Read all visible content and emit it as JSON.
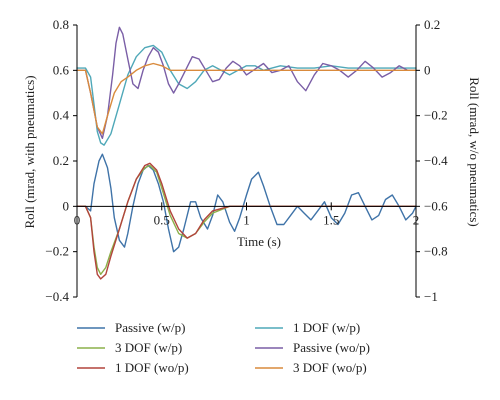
{
  "chart_data": {
    "type": "line",
    "title": "",
    "xlabel": "Time (s)",
    "ylabel_left": "Roll (mrad, with pneumatics)",
    "ylabel_right": "Roll (mrad, w/o pneumatics)",
    "xlim": [
      0,
      2
    ],
    "ylim_left": [
      -0.4,
      0.8
    ],
    "ylim_right": [
      -1,
      0.2
    ],
    "x_ticks": [
      "0",
      "0.5",
      "1",
      "1.5",
      "2"
    ],
    "y_ticks_left": [
      "−0.4",
      "−0.2",
      "0",
      "0.2",
      "0.4",
      "0.6",
      "0.8"
    ],
    "y_ticks_right": [
      "−1",
      "−0.8",
      "−0.6",
      "−0.4",
      "−0.2",
      "0",
      "0.2"
    ],
    "grid": false,
    "legend_position": "bottom",
    "series": [
      {
        "name": "Passive (w/p)",
        "axis": "left",
        "color": "#3f73a8",
        "points": [
          [
            0,
            0
          ],
          [
            0.05,
            0
          ],
          [
            0.08,
            -0.02
          ],
          [
            0.1,
            0.1
          ],
          [
            0.13,
            0.2
          ],
          [
            0.15,
            0.23
          ],
          [
            0.18,
            0.17
          ],
          [
            0.2,
            0.08
          ],
          [
            0.22,
            -0.05
          ],
          [
            0.25,
            -0.15
          ],
          [
            0.28,
            -0.18
          ],
          [
            0.3,
            -0.12
          ],
          [
            0.33,
            0
          ],
          [
            0.36,
            0.1
          ],
          [
            0.39,
            0.16
          ],
          [
            0.42,
            0.18
          ],
          [
            0.45,
            0.16
          ],
          [
            0.48,
            0.1
          ],
          [
            0.51,
            0.02
          ],
          [
            0.54,
            -0.1
          ],
          [
            0.57,
            -0.2
          ],
          [
            0.6,
            -0.18
          ],
          [
            0.63,
            -0.1
          ],
          [
            0.67,
            0.02
          ],
          [
            0.7,
            0.02
          ],
          [
            0.73,
            -0.05
          ],
          [
            0.77,
            -0.1
          ],
          [
            0.8,
            -0.04
          ],
          [
            0.83,
            0.05
          ],
          [
            0.86,
            0.02
          ],
          [
            0.9,
            -0.07
          ],
          [
            0.93,
            -0.11
          ],
          [
            0.96,
            -0.05
          ],
          [
            1.0,
            0.05
          ],
          [
            1.03,
            0.12
          ],
          [
            1.07,
            0.15
          ],
          [
            1.1,
            0.09
          ],
          [
            1.14,
            0
          ],
          [
            1.18,
            -0.08
          ],
          [
            1.22,
            -0.08
          ],
          [
            1.26,
            -0.04
          ],
          [
            1.3,
            0.0
          ],
          [
            1.34,
            -0.03
          ],
          [
            1.38,
            -0.06
          ],
          [
            1.42,
            -0.02
          ],
          [
            1.46,
            0.02
          ],
          [
            1.5,
            -0.05
          ],
          [
            1.54,
            -0.08
          ],
          [
            1.58,
            -0.03
          ],
          [
            1.62,
            0.05
          ],
          [
            1.66,
            0.06
          ],
          [
            1.7,
            0.0
          ],
          [
            1.74,
            -0.06
          ],
          [
            1.78,
            -0.04
          ],
          [
            1.82,
            0.03
          ],
          [
            1.86,
            0.05
          ],
          [
            1.9,
            0.0
          ],
          [
            1.94,
            -0.06
          ],
          [
            1.98,
            -0.03
          ],
          [
            2.0,
            0.0
          ]
        ]
      },
      {
        "name": "1 DOF (w/p)",
        "axis": "left",
        "color": "#4fa8b8",
        "points": [
          [
            0,
            0.61
          ],
          [
            0.05,
            0.61
          ],
          [
            0.08,
            0.57
          ],
          [
            0.1,
            0.45
          ],
          [
            0.12,
            0.33
          ],
          [
            0.14,
            0.28
          ],
          [
            0.16,
            0.27
          ],
          [
            0.2,
            0.32
          ],
          [
            0.25,
            0.45
          ],
          [
            0.3,
            0.58
          ],
          [
            0.35,
            0.66
          ],
          [
            0.4,
            0.7
          ],
          [
            0.45,
            0.71
          ],
          [
            0.5,
            0.68
          ],
          [
            0.55,
            0.6
          ],
          [
            0.6,
            0.54
          ],
          [
            0.65,
            0.52
          ],
          [
            0.7,
            0.55
          ],
          [
            0.75,
            0.6
          ],
          [
            0.8,
            0.62
          ],
          [
            0.85,
            0.6
          ],
          [
            0.9,
            0.58
          ],
          [
            0.95,
            0.6
          ],
          [
            1.0,
            0.62
          ],
          [
            1.05,
            0.62
          ],
          [
            1.1,
            0.6
          ],
          [
            1.15,
            0.61
          ],
          [
            1.2,
            0.62
          ],
          [
            1.3,
            0.61
          ],
          [
            1.4,
            0.61
          ],
          [
            1.5,
            0.62
          ],
          [
            1.6,
            0.61
          ],
          [
            1.7,
            0.61
          ],
          [
            1.8,
            0.61
          ],
          [
            1.9,
            0.61
          ],
          [
            2.0,
            0.61
          ]
        ]
      },
      {
        "name": "3 DOF (w/p)",
        "axis": "left",
        "color": "#8cb04a",
        "points": [
          [
            0,
            0
          ],
          [
            0.05,
            0
          ],
          [
            0.08,
            -0.05
          ],
          [
            0.1,
            -0.18
          ],
          [
            0.12,
            -0.27
          ],
          [
            0.14,
            -0.3
          ],
          [
            0.17,
            -0.27
          ],
          [
            0.2,
            -0.2
          ],
          [
            0.25,
            -0.1
          ],
          [
            0.3,
            0.02
          ],
          [
            0.35,
            0.12
          ],
          [
            0.4,
            0.17
          ],
          [
            0.43,
            0.18
          ],
          [
            0.47,
            0.15
          ],
          [
            0.5,
            0.08
          ],
          [
            0.55,
            -0.04
          ],
          [
            0.6,
            -0.12
          ],
          [
            0.65,
            -0.14
          ],
          [
            0.7,
            -0.12
          ],
          [
            0.75,
            -0.07
          ],
          [
            0.8,
            -0.03
          ],
          [
            0.9,
            0.0
          ],
          [
            1.0,
            0.0
          ],
          [
            1.2,
            0.0
          ],
          [
            1.5,
            0.0
          ],
          [
            2.0,
            0.0
          ]
        ]
      },
      {
        "name": "Passive (wo/p)",
        "axis": "right",
        "color": "#7a5ea6",
        "points": [
          [
            0,
            0
          ],
          [
            0.05,
            0
          ],
          [
            0.08,
            -0.1
          ],
          [
            0.12,
            -0.25
          ],
          [
            0.15,
            -0.3
          ],
          [
            0.18,
            -0.2
          ],
          [
            0.21,
            -0.02
          ],
          [
            0.23,
            0.12
          ],
          [
            0.25,
            0.19
          ],
          [
            0.27,
            0.16
          ],
          [
            0.3,
            0.05
          ],
          [
            0.33,
            -0.06
          ],
          [
            0.36,
            -0.08
          ],
          [
            0.39,
            0.0
          ],
          [
            0.42,
            0.06
          ],
          [
            0.45,
            0.1
          ],
          [
            0.48,
            0.08
          ],
          [
            0.51,
            0.02
          ],
          [
            0.54,
            -0.06
          ],
          [
            0.57,
            -0.1
          ],
          [
            0.6,
            -0.06
          ],
          [
            0.64,
            0.0
          ],
          [
            0.68,
            0.06
          ],
          [
            0.72,
            0.05
          ],
          [
            0.76,
            0.0
          ],
          [
            0.8,
            -0.05
          ],
          [
            0.84,
            -0.04
          ],
          [
            0.88,
            0.01
          ],
          [
            0.92,
            0.04
          ],
          [
            0.96,
            0.02
          ],
          [
            1.0,
            -0.02
          ],
          [
            1.04,
            0.0
          ],
          [
            1.1,
            0.03
          ],
          [
            1.15,
            -0.01
          ],
          [
            1.2,
            0.0
          ],
          [
            1.25,
            0.02
          ],
          [
            1.3,
            -0.05
          ],
          [
            1.35,
            -0.09
          ],
          [
            1.4,
            -0.02
          ],
          [
            1.45,
            0.03
          ],
          [
            1.5,
            0.02
          ],
          [
            1.55,
            0.0
          ],
          [
            1.6,
            -0.03
          ],
          [
            1.65,
            0.0
          ],
          [
            1.7,
            0.04
          ],
          [
            1.75,
            0.01
          ],
          [
            1.8,
            -0.03
          ],
          [
            1.85,
            -0.01
          ],
          [
            1.9,
            0.02
          ],
          [
            1.95,
            0.0
          ],
          [
            2.0,
            0.0
          ]
        ]
      },
      {
        "name": "1 DOF (wo/p)",
        "axis": "left",
        "color": "#b2443c",
        "points": [
          [
            0,
            0
          ],
          [
            0.05,
            0
          ],
          [
            0.08,
            -0.05
          ],
          [
            0.1,
            -0.2
          ],
          [
            0.12,
            -0.3
          ],
          [
            0.14,
            -0.32
          ],
          [
            0.17,
            -0.3
          ],
          [
            0.2,
            -0.22
          ],
          [
            0.25,
            -0.1
          ],
          [
            0.3,
            0.02
          ],
          [
            0.35,
            0.12
          ],
          [
            0.4,
            0.18
          ],
          [
            0.43,
            0.19
          ],
          [
            0.47,
            0.16
          ],
          [
            0.5,
            0.1
          ],
          [
            0.55,
            -0.02
          ],
          [
            0.6,
            -0.1
          ],
          [
            0.65,
            -0.14
          ],
          [
            0.7,
            -0.12
          ],
          [
            0.75,
            -0.06
          ],
          [
            0.8,
            -0.02
          ],
          [
            0.9,
            0.0
          ],
          [
            1.0,
            0.0
          ],
          [
            1.2,
            0.0
          ],
          [
            1.5,
            0.0
          ],
          [
            2.0,
            0.0
          ]
        ]
      },
      {
        "name": "3 DOF (wo/p)",
        "axis": "right",
        "color": "#d98a3c",
        "points": [
          [
            0,
            0
          ],
          [
            0.05,
            0
          ],
          [
            0.08,
            -0.1
          ],
          [
            0.12,
            -0.25
          ],
          [
            0.15,
            -0.28
          ],
          [
            0.18,
            -0.2
          ],
          [
            0.22,
            -0.1
          ],
          [
            0.26,
            -0.05
          ],
          [
            0.3,
            -0.03
          ],
          [
            0.35,
            0.0
          ],
          [
            0.4,
            0.02
          ],
          [
            0.45,
            0.03
          ],
          [
            0.5,
            0.02
          ],
          [
            0.55,
            0.0
          ],
          [
            0.6,
            0.0
          ],
          [
            0.7,
            0.0
          ],
          [
            0.8,
            0.0
          ],
          [
            1.0,
            0.0
          ],
          [
            1.2,
            0.0
          ],
          [
            1.5,
            0.0
          ],
          [
            2.0,
            0.0
          ]
        ]
      }
    ],
    "legend": [
      {
        "label": "Passive (w/p)",
        "color": "#3f73a8"
      },
      {
        "label": "1 DOF (w/p)",
        "color": "#4fa8b8"
      },
      {
        "label": "3 DOF (w/p)",
        "color": "#8cb04a"
      },
      {
        "label": "Passive (wo/p)",
        "color": "#7a5ea6"
      },
      {
        "label": "1 DOF (wo/p)",
        "color": "#b2443c"
      },
      {
        "label": "3 DOF (wo/p)",
        "color": "#d98a3c"
      }
    ]
  }
}
